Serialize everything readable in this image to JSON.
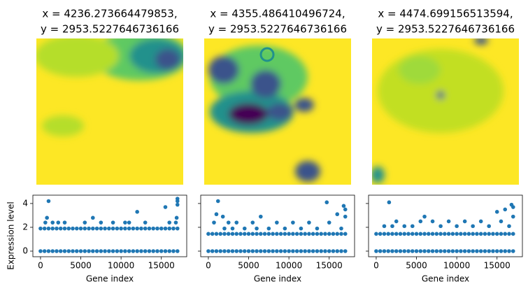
{
  "chart_data": [
    {
      "type": "scatter",
      "title": [
        "x = 4236.273664479853,",
        "y = 2953.5227646736166"
      ],
      "xlabel": "Gene index",
      "ylabel": "Expression level",
      "color": "#1f77b4",
      "xlim": [
        -950,
        18150
      ],
      "ylim": [
        -0.47,
        4.7
      ],
      "xticks": [
        0,
        5000,
        10000,
        15000
      ],
      "yticks": [
        0,
        2,
        4
      ],
      "ytick_labels": true,
      "x": [
        0,
        500,
        1000,
        1500,
        2000,
        2500,
        3000,
        3500,
        4000,
        4500,
        5000,
        5500,
        6000,
        6500,
        7000,
        7500,
        8000,
        8500,
        9000,
        9500,
        10000,
        10500,
        11000,
        11500,
        12000,
        12500,
        13000,
        13500,
        14000,
        14500,
        15000,
        15500,
        16000,
        16500,
        17000,
        0,
        500,
        1000,
        1500,
        2000,
        2500,
        3000,
        3500,
        4000,
        4500,
        5000,
        5500,
        6000,
        6500,
        7000,
        7500,
        8000,
        8500,
        9000,
        9500,
        10000,
        10500,
        11000,
        11500,
        12000,
        12500,
        13000,
        13500,
        14000,
        14500,
        15000,
        15500,
        16000,
        16500,
        17000,
        1000,
        800,
        600,
        1500,
        2200,
        3000,
        5500,
        6500,
        7500,
        9000,
        10500,
        12000,
        13000,
        15500,
        16000,
        16800,
        17000,
        17000,
        17000,
        16900,
        11000
      ],
      "y": [
        0,
        0,
        0,
        0,
        0,
        0,
        0,
        0,
        0,
        0,
        0,
        0,
        0,
        0,
        0,
        0,
        0,
        0,
        0,
        0,
        0,
        0,
        0,
        0,
        0,
        0,
        0,
        0,
        0,
        0,
        0,
        0,
        0,
        0,
        0,
        1.9,
        1.9,
        1.9,
        1.9,
        1.9,
        1.9,
        1.9,
        1.9,
        1.9,
        1.9,
        1.9,
        1.9,
        1.9,
        1.9,
        1.9,
        1.9,
        1.9,
        1.9,
        1.9,
        1.9,
        1.9,
        1.9,
        1.9,
        1.9,
        1.9,
        1.9,
        1.9,
        1.9,
        1.9,
        1.9,
        1.9,
        1.9,
        1.9,
        1.9,
        1.9,
        4.2,
        2.8,
        2.4,
        2.4,
        2.4,
        2.4,
        2.4,
        2.8,
        2.4,
        2.4,
        2.4,
        3.3,
        2.4,
        3.7,
        2.4,
        2.4,
        4.4,
        4.2,
        3.9,
        2.8,
        2.4
      ]
    },
    {
      "type": "scatter",
      "title": [
        "x = 4355.486410496724,",
        "y = 2953.5227646736166"
      ],
      "xlabel": "Gene index",
      "color": "#1f77b4",
      "xlim": [
        -950,
        18150
      ],
      "ylim": [
        -0.47,
        4.7
      ],
      "xticks": [
        0,
        5000,
        10000,
        15000
      ],
      "yticks": [
        0,
        2,
        4
      ],
      "ytick_labels": false,
      "x": [
        0,
        500,
        1000,
        1500,
        2000,
        2500,
        3000,
        3500,
        4000,
        4500,
        5000,
        5500,
        6000,
        6500,
        7000,
        7500,
        8000,
        8500,
        9000,
        9500,
        10000,
        10500,
        11000,
        11500,
        12000,
        12500,
        13000,
        13500,
        14000,
        14500,
        15000,
        15500,
        16000,
        16500,
        17000,
        0,
        500,
        1000,
        1500,
        2000,
        2500,
        3000,
        3500,
        4000,
        4500,
        5000,
        5500,
        6000,
        6500,
        7000,
        7500,
        8000,
        8500,
        9000,
        9500,
        10000,
        10500,
        11000,
        11500,
        12000,
        12500,
        13000,
        13500,
        14000,
        14500,
        15000,
        15500,
        16000,
        16500,
        17000,
        1200,
        1000,
        700,
        1800,
        2500,
        3500,
        4500,
        5500,
        6500,
        7500,
        8500,
        9500,
        10500,
        11500,
        12500,
        13500,
        14700,
        15000,
        16000,
        16800,
        17000,
        17000,
        16500,
        2000,
        3000,
        6000
      ],
      "y": [
        0,
        0,
        0,
        0,
        0,
        0,
        0,
        0,
        0,
        0,
        0,
        0,
        0,
        0,
        0,
        0,
        0,
        0,
        0,
        0,
        0,
        0,
        0,
        0,
        0,
        0,
        0,
        0,
        0,
        0,
        0,
        0,
        0,
        0,
        0,
        1.45,
        1.45,
        1.45,
        1.45,
        1.45,
        1.45,
        1.45,
        1.45,
        1.45,
        1.45,
        1.45,
        1.45,
        1.45,
        1.45,
        1.45,
        1.45,
        1.45,
        1.45,
        1.45,
        1.45,
        1.45,
        1.45,
        1.45,
        1.45,
        1.45,
        1.45,
        1.45,
        1.45,
        1.45,
        1.45,
        1.45,
        1.45,
        1.45,
        1.45,
        1.45,
        4.2,
        3.1,
        2.4,
        2.9,
        2.4,
        2.4,
        1.9,
        2.4,
        2.9,
        1.9,
        2.4,
        1.9,
        2.4,
        1.9,
        2.4,
        1.9,
        4.1,
        2.4,
        3.1,
        3.8,
        3.5,
        2.9,
        1.9,
        1.9,
        1.9,
        1.9
      ]
    },
    {
      "type": "scatter",
      "title": [
        "x = 4474.699156513594,",
        "y = 2953.5227646736166"
      ],
      "xlabel": "Gene index",
      "color": "#1f77b4",
      "xlim": [
        -950,
        18150
      ],
      "ylim": [
        -0.47,
        4.7
      ],
      "xticks": [
        0,
        5000,
        10000,
        15000
      ],
      "yticks": [
        0,
        2,
        4
      ],
      "ytick_labels": false,
      "x": [
        0,
        500,
        1000,
        1500,
        2000,
        2500,
        3000,
        3500,
        4000,
        4500,
        5000,
        5500,
        6000,
        6500,
        7000,
        7500,
        8000,
        8500,
        9000,
        9500,
        10000,
        10500,
        11000,
        11500,
        12000,
        12500,
        13000,
        13500,
        14000,
        14500,
        15000,
        15500,
        16000,
        16500,
        17000,
        0,
        500,
        1000,
        1500,
        2000,
        2500,
        3000,
        3500,
        4000,
        4500,
        5000,
        5500,
        6000,
        6500,
        7000,
        7500,
        8000,
        8500,
        9000,
        9500,
        10000,
        10500,
        11000,
        11500,
        12000,
        12500,
        13000,
        13500,
        14000,
        14500,
        15000,
        15500,
        16000,
        16500,
        17000,
        1600,
        1000,
        2500,
        3500,
        4500,
        5500,
        6000,
        7000,
        8000,
        9000,
        10000,
        11000,
        12000,
        13000,
        14000,
        15000,
        15500,
        16000,
        16800,
        17000,
        17000,
        16500,
        2000
      ],
      "y": [
        0,
        0,
        0,
        0,
        0,
        0,
        0,
        0,
        0,
        0,
        0,
        0,
        0,
        0,
        0,
        0,
        0,
        0,
        0,
        0,
        0,
        0,
        0,
        0,
        0,
        0,
        0,
        0,
        0,
        0,
        0,
        0,
        0,
        0,
        0,
        1.45,
        1.45,
        1.45,
        1.45,
        1.45,
        1.45,
        1.45,
        1.45,
        1.45,
        1.45,
        1.45,
        1.45,
        1.45,
        1.45,
        1.45,
        1.45,
        1.45,
        1.45,
        1.45,
        1.45,
        1.45,
        1.45,
        1.45,
        1.45,
        1.45,
        1.45,
        1.45,
        1.45,
        1.45,
        1.45,
        1.45,
        1.45,
        1.45,
        1.45,
        1.45,
        4.1,
        2.1,
        2.5,
        2.1,
        2.1,
        2.5,
        2.9,
        2.5,
        2.1,
        2.5,
        2.1,
        2.5,
        2.1,
        2.5,
        2.1,
        3.3,
        2.5,
        3.5,
        3.9,
        3.7,
        2.9,
        2.1,
        2.1
      ]
    }
  ]
}
